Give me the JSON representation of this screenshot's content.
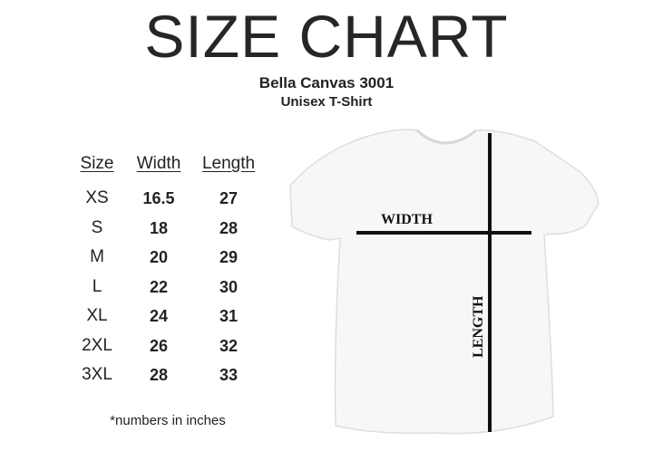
{
  "title": "SIZE CHART",
  "product": "Bella Canvas 3001",
  "product_type": "Unisex T-Shirt",
  "table": {
    "headers": [
      "Size",
      "Width",
      "Length"
    ],
    "rows": [
      [
        "XS",
        "16.5",
        "27"
      ],
      [
        "S",
        "18",
        "28"
      ],
      [
        "M",
        "20",
        "29"
      ],
      [
        "L",
        "22",
        "30"
      ],
      [
        "XL",
        "24",
        "31"
      ],
      [
        "2XL",
        "26",
        "32"
      ],
      [
        "3XL",
        "28",
        "33"
      ]
    ]
  },
  "note": "*numbers in inches",
  "diagram": {
    "width_label": "WIDTH",
    "length_label": "LENGTH"
  }
}
